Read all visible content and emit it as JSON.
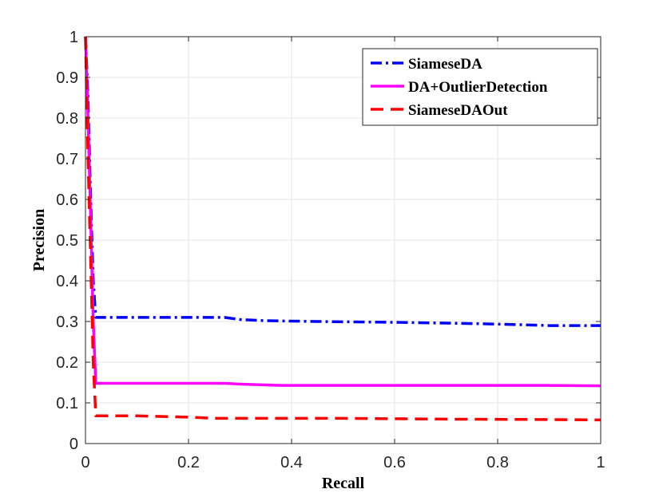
{
  "chart_data": {
    "type": "line",
    "title": "",
    "xlabel": "Recall",
    "ylabel": "Precision",
    "xlim": [
      0,
      1
    ],
    "ylim": [
      0,
      1
    ],
    "xticks": [
      0,
      0.2,
      0.4,
      0.6,
      0.8,
      1
    ],
    "xtick_labels": [
      "0",
      "0.2",
      "0.4",
      "0.6",
      "0.8",
      "1"
    ],
    "yticks": [
      0,
      0.1,
      0.2,
      0.3,
      0.4,
      0.5,
      0.6,
      0.7,
      0.8,
      0.9,
      1
    ],
    "ytick_labels": [
      "0",
      "0.1",
      "0.2",
      "0.3",
      "0.4",
      "0.5",
      "0.6",
      "0.7",
      "0.8",
      "0.9",
      "1"
    ],
    "grid": true,
    "legend_position": "top-right",
    "series": [
      {
        "name": "SiameseDA",
        "color": "#0000ff",
        "style": "dashdot",
        "x": [
          0,
          0.005,
          0.01,
          0.015,
          0.02,
          0.27,
          0.3,
          0.35,
          0.45,
          0.6,
          0.75,
          0.85,
          0.9,
          1.0
        ],
        "y": [
          1.0,
          0.85,
          0.6,
          0.4,
          0.31,
          0.31,
          0.305,
          0.302,
          0.3,
          0.298,
          0.295,
          0.292,
          0.29,
          0.29
        ]
      },
      {
        "name": "DA+OutlierDetection",
        "color": "#ff00ff",
        "style": "solid",
        "x": [
          0,
          0.005,
          0.01,
          0.015,
          0.02,
          0.27,
          0.3,
          0.38,
          0.5,
          0.7,
          0.9,
          1.0
        ],
        "y": [
          1.0,
          0.8,
          0.55,
          0.3,
          0.148,
          0.148,
          0.146,
          0.143,
          0.143,
          0.143,
          0.143,
          0.142
        ]
      },
      {
        "name": "SiameseDAOut",
        "color": "#ff0000",
        "style": "dashed",
        "x": [
          0,
          0.005,
          0.01,
          0.015,
          0.02,
          0.1,
          0.2,
          0.25,
          0.3,
          0.5,
          0.7,
          0.9,
          1.0
        ],
        "y": [
          1.0,
          0.7,
          0.45,
          0.2,
          0.068,
          0.068,
          0.065,
          0.062,
          0.062,
          0.062,
          0.06,
          0.059,
          0.058
        ]
      }
    ]
  }
}
